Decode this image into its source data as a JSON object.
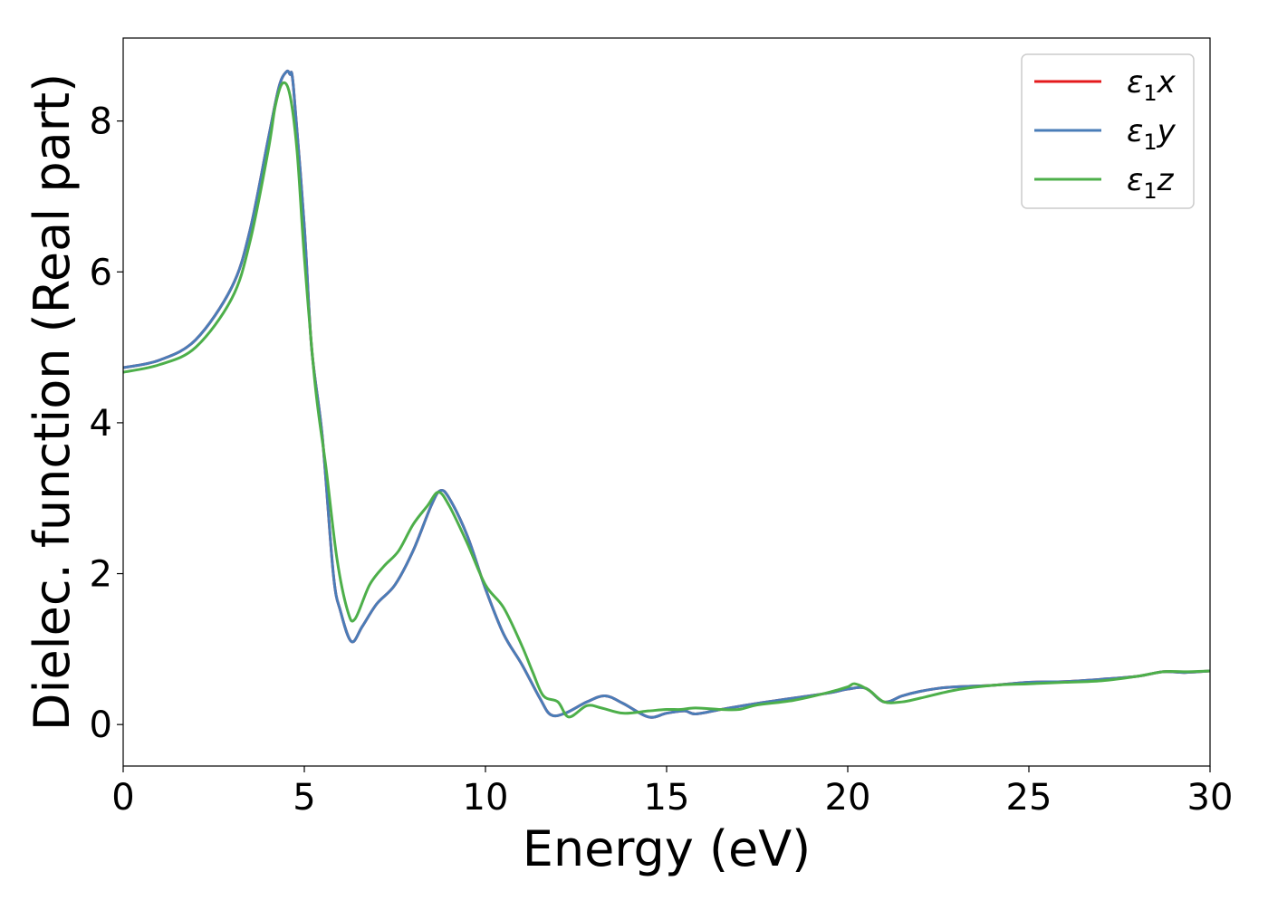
{
  "chart_data": {
    "type": "line",
    "title": "",
    "xlabel": "Energy (eV)",
    "ylabel": "Dielec. function (Real part)",
    "xlim": [
      0,
      30
    ],
    "ylim": [
      -0.55,
      9.1
    ],
    "xticks": [
      0,
      5,
      10,
      15,
      20,
      25,
      30
    ],
    "yticks": [
      0,
      2,
      4,
      6,
      8
    ],
    "grid": false,
    "legend_position": "top-right",
    "series": [
      {
        "name": "ε1x",
        "legend": {
          "base": "ε",
          "sub": "1",
          "var": "x"
        },
        "color": "#e41a1c",
        "x": [
          0,
          1,
          2,
          3,
          3.5,
          4,
          4.3,
          4.5,
          4.6,
          4.7,
          5,
          5.2,
          5.5,
          5.8,
          6,
          6.3,
          6.6,
          7,
          7.5,
          8,
          8.5,
          8.75,
          9,
          9.5,
          10,
          10.5,
          11,
          11.5,
          11.8,
          12.2,
          12.8,
          13.3,
          13.8,
          14.5,
          15,
          15.5,
          15.8,
          16.5,
          17.5,
          18.5,
          19.5,
          20,
          20.5,
          21,
          21.5,
          22,
          22.5,
          23,
          24,
          25,
          26,
          27,
          28,
          28.7,
          29.3,
          30
        ],
        "y": [
          4.73,
          4.83,
          5.1,
          5.8,
          6.55,
          7.75,
          8.45,
          8.65,
          8.62,
          8.45,
          6.6,
          5.0,
          3.8,
          2.0,
          1.5,
          1.1,
          1.3,
          1.6,
          1.85,
          2.3,
          2.9,
          3.1,
          3.0,
          2.5,
          1.8,
          1.2,
          0.8,
          0.35,
          0.13,
          0.15,
          0.3,
          0.38,
          0.28,
          0.1,
          0.15,
          0.18,
          0.14,
          0.2,
          0.28,
          0.35,
          0.42,
          0.47,
          0.48,
          0.3,
          0.38,
          0.44,
          0.48,
          0.5,
          0.52,
          0.56,
          0.57,
          0.6,
          0.64,
          0.7,
          0.69,
          0.71
        ]
      },
      {
        "name": "ε1y",
        "legend": {
          "base": "ε",
          "sub": "1",
          "var": "y"
        },
        "color": "#4a7db8",
        "x": [
          0,
          1,
          2,
          3,
          3.5,
          4,
          4.3,
          4.5,
          4.6,
          4.7,
          5,
          5.2,
          5.5,
          5.8,
          6,
          6.3,
          6.6,
          7,
          7.5,
          8,
          8.5,
          8.75,
          9,
          9.5,
          10,
          10.5,
          11,
          11.5,
          11.8,
          12.2,
          12.8,
          13.3,
          13.8,
          14.5,
          15,
          15.5,
          15.8,
          16.5,
          17.5,
          18.5,
          19.5,
          20,
          20.5,
          21,
          21.5,
          22,
          22.5,
          23,
          24,
          25,
          26,
          27,
          28,
          28.7,
          29.3,
          30
        ],
        "y": [
          4.73,
          4.83,
          5.1,
          5.8,
          6.55,
          7.75,
          8.45,
          8.65,
          8.62,
          8.45,
          6.6,
          5.0,
          3.8,
          2.0,
          1.5,
          1.1,
          1.3,
          1.6,
          1.85,
          2.3,
          2.9,
          3.1,
          3.0,
          2.5,
          1.8,
          1.2,
          0.8,
          0.35,
          0.13,
          0.15,
          0.3,
          0.38,
          0.28,
          0.1,
          0.15,
          0.18,
          0.14,
          0.2,
          0.28,
          0.35,
          0.42,
          0.47,
          0.48,
          0.3,
          0.38,
          0.44,
          0.48,
          0.5,
          0.52,
          0.56,
          0.57,
          0.6,
          0.64,
          0.7,
          0.69,
          0.71
        ]
      },
      {
        "name": "ε1z",
        "legend": {
          "base": "ε",
          "sub": "1",
          "var": "z"
        },
        "color": "#4daf4a",
        "x": [
          0,
          1,
          2,
          3,
          3.5,
          4,
          4.2,
          4.4,
          4.6,
          4.8,
          5,
          5.3,
          5.6,
          5.9,
          6.2,
          6.4,
          6.8,
          7.2,
          7.6,
          8,
          8.4,
          8.7,
          9,
          9.5,
          10,
          10.5,
          11,
          11.3,
          11.6,
          12,
          12.3,
          12.8,
          13.2,
          13.8,
          14.5,
          15,
          15.4,
          15.8,
          16.5,
          17,
          17.5,
          18.5,
          19.5,
          20,
          20.2,
          20.6,
          21,
          21.5,
          22,
          23,
          24,
          25,
          26,
          27,
          28,
          28.7,
          29.3,
          30
        ],
        "y": [
          4.67,
          4.77,
          5.0,
          5.65,
          6.4,
          7.6,
          8.2,
          8.5,
          8.35,
          7.6,
          6.2,
          4.5,
          3.4,
          2.2,
          1.5,
          1.4,
          1.85,
          2.1,
          2.3,
          2.65,
          2.9,
          3.08,
          2.9,
          2.4,
          1.85,
          1.55,
          1.05,
          0.7,
          0.38,
          0.3,
          0.1,
          0.25,
          0.22,
          0.15,
          0.18,
          0.2,
          0.2,
          0.22,
          0.2,
          0.2,
          0.26,
          0.32,
          0.43,
          0.5,
          0.54,
          0.45,
          0.3,
          0.3,
          0.35,
          0.46,
          0.52,
          0.54,
          0.56,
          0.58,
          0.64,
          0.7,
          0.7,
          0.71
        ]
      }
    ]
  }
}
